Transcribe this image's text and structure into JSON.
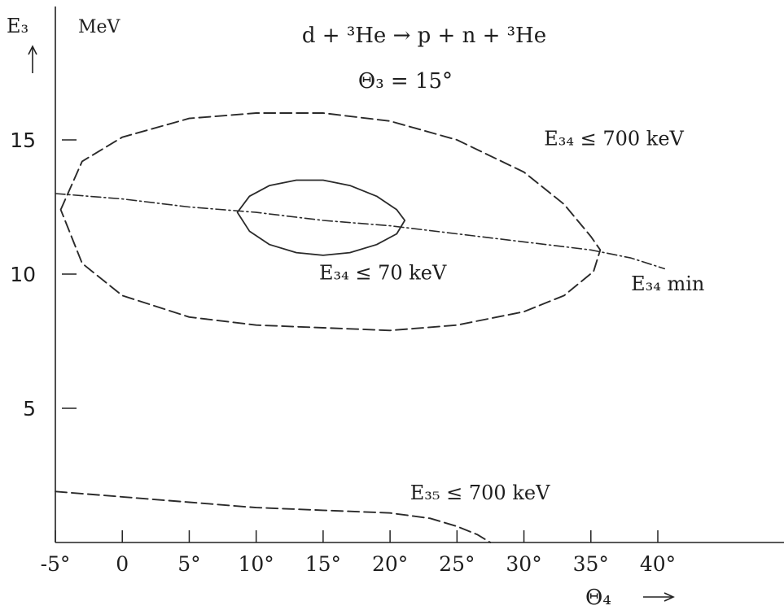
{
  "chart_data": {
    "type": "line",
    "title": "d + ³He → p + n + ³He",
    "subtitle": "Θ₃ = 15°",
    "units_label": "MeV",
    "ylabel": "E₃",
    "xlabel": "Θ₄",
    "xlim": [
      -5,
      46
    ],
    "ylim": [
      0,
      20
    ],
    "x_tick_labels": [
      {
        "x": -5,
        "label": "-5°"
      },
      {
        "x": 0,
        "label": "0"
      },
      {
        "x": 5,
        "label": "5°"
      },
      {
        "x": 10,
        "label": "10°"
      },
      {
        "x": 15,
        "label": "15°"
      },
      {
        "x": 20,
        "label": "20°"
      },
      {
        "x": 25,
        "label": "25°"
      },
      {
        "x": 30,
        "label": "30°"
      },
      {
        "x": 35,
        "label": "35°"
      },
      {
        "x": 40,
        "label": "40°"
      }
    ],
    "y_tick_labels": [
      {
        "y": 5,
        "label": "5"
      },
      {
        "y": 10,
        "label": "10"
      },
      {
        "y": 15,
        "label": "15"
      }
    ],
    "grid": false,
    "series": [
      {
        "name": "E₃₄ ≤ 700 keV",
        "style": "dashed",
        "x": [
          -4.6,
          -3.0,
          0.0,
          5.0,
          10.0,
          15.0,
          20.0,
          25.0,
          30.0,
          33.0,
          35.0,
          35.7,
          35.2,
          33.0,
          30.0,
          25.0,
          20.0,
          15.0,
          10.0,
          5.0,
          0.0,
          -3.0,
          -4.6
        ],
        "y": [
          12.4,
          14.2,
          15.1,
          15.8,
          16.0,
          16.0,
          15.7,
          15.0,
          13.8,
          12.6,
          11.4,
          10.9,
          10.1,
          9.2,
          8.6,
          8.1,
          7.9,
          8.0,
          8.1,
          8.4,
          9.2,
          10.4,
          12.4
        ]
      },
      {
        "name": "E₃₄ ≤ 70 keV",
        "style": "solid",
        "x": [
          8.6,
          9.5,
          11.0,
          13.0,
          15.0,
          17.0,
          19.0,
          20.5,
          21.1,
          20.5,
          19.0,
          17.0,
          15.0,
          13.0,
          11.0,
          9.5,
          8.6
        ],
        "y": [
          12.3,
          12.9,
          13.3,
          13.5,
          13.5,
          13.3,
          12.9,
          12.4,
          12.0,
          11.5,
          11.1,
          10.8,
          10.7,
          10.8,
          11.1,
          11.6,
          12.3
        ]
      },
      {
        "name": "E₃₄ min",
        "style": "dash-dot",
        "x": [
          -5.0,
          0.0,
          5.0,
          10.0,
          15.0,
          20.0,
          25.0,
          30.0,
          35.0,
          38.0,
          40.5
        ],
        "y": [
          13.0,
          12.8,
          12.5,
          12.3,
          12.0,
          11.8,
          11.5,
          11.2,
          10.9,
          10.6,
          10.2
        ]
      },
      {
        "name": "E₃₅ ≤ 700 keV",
        "style": "dashed",
        "x": [
          -5.0,
          0.0,
          5.0,
          10.0,
          15.0,
          20.0,
          23.0,
          25.0,
          26.5,
          27.5
        ],
        "y": [
          1.9,
          1.7,
          1.5,
          1.3,
          1.2,
          1.1,
          0.9,
          0.6,
          0.3,
          0.0
        ]
      }
    ],
    "annotations": [
      {
        "text": "E₃₄ ≤ 700 keV",
        "series": 0,
        "x": 31.5,
        "y": 14.8
      },
      {
        "text": "E₃₄ ≤ 70 keV",
        "series": 1,
        "x": 14.7,
        "y": 9.8
      },
      {
        "text": "E₃₄ min",
        "series": 2,
        "x": 38.0,
        "y": 9.4
      },
      {
        "text": "E₃₅ ≤ 700 keV",
        "series": 3,
        "x": 21.5,
        "y": 1.6
      }
    ]
  }
}
